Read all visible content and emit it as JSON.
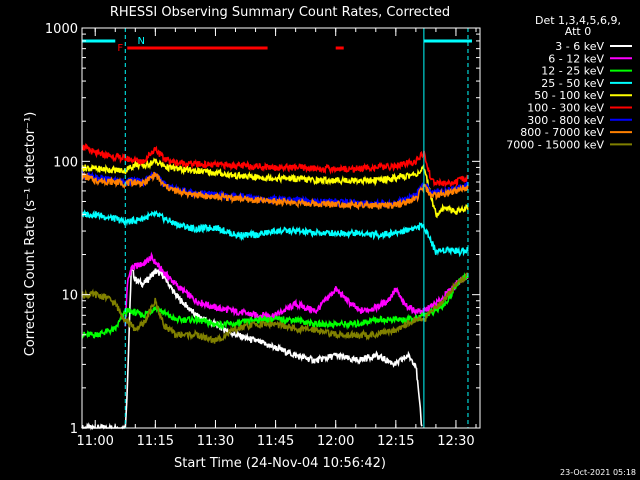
{
  "chart_data": {
    "type": "line",
    "title": "RHESSI Observing Summary Count Rates, Corrected",
    "xlabel": "Start Time (24-Nov-04 10:56:42)",
    "ylabel": "Corrected Count Rate (s⁻¹ detector⁻¹)",
    "y_scale": "log",
    "ylim": [
      1,
      1000
    ],
    "xlim": [
      "10:56:42",
      "12:36:00"
    ],
    "x_ticks": [
      "11:00",
      "11:15",
      "11:30",
      "11:45",
      "12:00",
      "12:15",
      "12:30"
    ],
    "y_ticks": [
      "1",
      "10",
      "100",
      "1000"
    ],
    "legend_header": [
      "Det 1,3,4,5,6,9,",
      "Att 0"
    ],
    "legend_position": "right",
    "timestamp": "23-Oct-2021 05:18",
    "flags": [
      {
        "label": "N",
        "color": "#00ffff",
        "segments": [
          [
            "10:56:42",
            "11:05:00"
          ],
          [
            "12:22:00",
            "12:34:00"
          ]
        ]
      },
      {
        "label": "F",
        "color": "#ff0000",
        "segments": [
          [
            "11:08:00",
            "11:43:00"
          ],
          [
            "12:00:00",
            "12:02:00"
          ]
        ]
      }
    ],
    "vertical_markers": [
      {
        "time": "11:07:30",
        "color": "#00ffff",
        "style": "dashed"
      },
      {
        "time": "12:22:00",
        "color": "#00ffff",
        "style": "solid"
      },
      {
        "time": "12:33:00",
        "color": "#00ffff",
        "style": "dashed"
      }
    ],
    "series": [
      {
        "name": "3 - 6 keV",
        "color": "#ffffff",
        "points": [
          [
            "10:56:42",
            1.0
          ],
          [
            "11:05:00",
            1.0
          ],
          [
            "11:07:30",
            1.0
          ],
          [
            "11:08:00",
            2.0
          ],
          [
            "11:09:00",
            16
          ],
          [
            "11:10:00",
            13
          ],
          [
            "11:12:00",
            12
          ],
          [
            "11:15:00",
            15
          ],
          [
            "11:17:00",
            14
          ],
          [
            "11:20:00",
            10
          ],
          [
            "11:25:00",
            7.0
          ],
          [
            "11:30:00",
            6.0
          ],
          [
            "11:35:00",
            5.0
          ],
          [
            "11:40:00",
            4.5
          ],
          [
            "11:45:00",
            4.0
          ],
          [
            "11:50:00",
            3.5
          ],
          [
            "11:55:00",
            3.2
          ],
          [
            "12:00:00",
            3.5
          ],
          [
            "12:05:00",
            3.2
          ],
          [
            "12:10:00",
            3.5
          ],
          [
            "12:15:00",
            3.0
          ],
          [
            "12:18:00",
            3.5
          ],
          [
            "12:20:00",
            3.0
          ],
          [
            "12:21:30",
            1.0
          ]
        ]
      },
      {
        "name": "6 - 12 keV",
        "color": "#ff00ff",
        "points": [
          [
            "11:07:30",
            6.0
          ],
          [
            "11:08:00",
            12
          ],
          [
            "11:09:00",
            16
          ],
          [
            "11:12:00",
            17
          ],
          [
            "11:14:00",
            19
          ],
          [
            "11:16:00",
            16
          ],
          [
            "11:20:00",
            12
          ],
          [
            "11:25:00",
            9.0
          ],
          [
            "11:30:00",
            8.0
          ],
          [
            "11:35:00",
            7.5
          ],
          [
            "11:40:00",
            7.0
          ],
          [
            "11:45:00",
            7.0
          ],
          [
            "11:50:00",
            8.5
          ],
          [
            "11:55:00",
            7.5
          ],
          [
            "12:00:00",
            11
          ],
          [
            "12:03:00",
            9.0
          ],
          [
            "12:06:00",
            7.5
          ],
          [
            "12:10:00",
            8.0
          ],
          [
            "12:13:00",
            9.0
          ],
          [
            "12:15:00",
            11
          ],
          [
            "12:17:00",
            8.5
          ],
          [
            "12:20:00",
            7.5
          ],
          [
            "12:22:00",
            7.5
          ],
          [
            "12:26:00",
            9.0
          ],
          [
            "12:30:00",
            12
          ],
          [
            "12:33:00",
            14
          ]
        ]
      },
      {
        "name": "12 - 25 keV",
        "color": "#00ff00",
        "points": [
          [
            "10:56:42",
            5.0
          ],
          [
            "11:00:00",
            5.0
          ],
          [
            "11:05:00",
            5.5
          ],
          [
            "11:07:30",
            7.5
          ],
          [
            "11:09:00",
            7.5
          ],
          [
            "11:12:00",
            7.0
          ],
          [
            "11:15:00",
            8.0
          ],
          [
            "11:20:00",
            6.5
          ],
          [
            "11:25:00",
            6.5
          ],
          [
            "11:30:00",
            6.0
          ],
          [
            "11:35:00",
            6.0
          ],
          [
            "11:40:00",
            6.5
          ],
          [
            "11:45:00",
            6.5
          ],
          [
            "11:50:00",
            6.5
          ],
          [
            "11:55:00",
            6.0
          ],
          [
            "12:00:00",
            6.0
          ],
          [
            "12:05:00",
            6.0
          ],
          [
            "12:10:00",
            6.5
          ],
          [
            "12:15:00",
            6.5
          ],
          [
            "12:20:00",
            6.5
          ],
          [
            "12:22:00",
            7.0
          ],
          [
            "12:25:00",
            7.5
          ],
          [
            "12:28:00",
            9.0
          ],
          [
            "12:30:00",
            12
          ],
          [
            "12:33:00",
            14
          ]
        ]
      },
      {
        "name": "25 - 50 keV",
        "color": "#00ffff",
        "points": [
          [
            "10:56:42",
            40
          ],
          [
            "11:00:00",
            40
          ],
          [
            "11:05:00",
            37
          ],
          [
            "11:07:30",
            35
          ],
          [
            "11:10:00",
            36
          ],
          [
            "11:15:00",
            40
          ],
          [
            "11:20:00",
            34
          ],
          [
            "11:25:00",
            31
          ],
          [
            "11:30:00",
            32
          ],
          [
            "11:35:00",
            28
          ],
          [
            "11:40:00",
            28
          ],
          [
            "11:45:00",
            30
          ],
          [
            "11:50:00",
            30
          ],
          [
            "11:55:00",
            29
          ],
          [
            "12:00:00",
            29
          ],
          [
            "12:05:00",
            29
          ],
          [
            "12:10:00",
            28
          ],
          [
            "12:15:00",
            29
          ],
          [
            "12:20:00",
            32
          ],
          [
            "12:22:00",
            33
          ],
          [
            "12:25:00",
            21
          ],
          [
            "12:28:00",
            22
          ],
          [
            "12:31:00",
            21
          ],
          [
            "12:33:00",
            22
          ]
        ]
      },
      {
        "name": "50 - 100 keV",
        "color": "#ffff00",
        "points": [
          [
            "10:56:42",
            90
          ],
          [
            "11:00:00",
            88
          ],
          [
            "11:05:00",
            86
          ],
          [
            "11:07:30",
            85
          ],
          [
            "11:10:00",
            95
          ],
          [
            "11:12:00",
            92
          ],
          [
            "11:15:00",
            100
          ],
          [
            "11:18:00",
            90
          ],
          [
            "11:25:00",
            85
          ],
          [
            "11:30:00",
            82
          ],
          [
            "11:35:00",
            78
          ],
          [
            "11:40:00",
            76
          ],
          [
            "11:45:00",
            75
          ],
          [
            "11:50:00",
            74
          ],
          [
            "11:55:00",
            72
          ],
          [
            "12:00:00",
            72
          ],
          [
            "12:05:00",
            72
          ],
          [
            "12:10:00",
            72
          ],
          [
            "12:15:00",
            75
          ],
          [
            "12:20:00",
            80
          ],
          [
            "12:22:00",
            88
          ],
          [
            "12:25:00",
            40
          ],
          [
            "12:27:00",
            45
          ],
          [
            "12:30:00",
            42
          ],
          [
            "12:33:00",
            45
          ]
        ]
      },
      {
        "name": "100 - 300 keV",
        "color": "#ff0000",
        "points": [
          [
            "10:56:42",
            130
          ],
          [
            "11:00:00",
            115
          ],
          [
            "11:05:00",
            108
          ],
          [
            "11:07:30",
            105
          ],
          [
            "11:10:00",
            102
          ],
          [
            "11:12:00",
            100
          ],
          [
            "11:15:00",
            125
          ],
          [
            "11:17:00",
            105
          ],
          [
            "11:20:00",
            98
          ],
          [
            "11:25:00",
            95
          ],
          [
            "11:30:00",
            94
          ],
          [
            "11:35:00",
            93
          ],
          [
            "11:40:00",
            92
          ],
          [
            "11:45:00",
            90
          ],
          [
            "11:50:00",
            90
          ],
          [
            "11:55:00",
            88
          ],
          [
            "12:00:00",
            88
          ],
          [
            "12:05:00",
            88
          ],
          [
            "12:10:00",
            90
          ],
          [
            "12:15:00",
            92
          ],
          [
            "12:20:00",
            100
          ],
          [
            "12:22:00",
            115
          ],
          [
            "12:24:00",
            70
          ],
          [
            "12:27:00",
            68
          ],
          [
            "12:30:00",
            70
          ],
          [
            "12:33:00",
            75
          ]
        ]
      },
      {
        "name": "300 - 800 keV",
        "color": "#0000ff",
        "points": [
          [
            "10:56:42",
            80
          ],
          [
            "11:00:00",
            75
          ],
          [
            "11:05:00",
            72
          ],
          [
            "11:07:30",
            70
          ],
          [
            "11:10:00",
            72
          ],
          [
            "11:12:00",
            70
          ],
          [
            "11:15:00",
            82
          ],
          [
            "11:17:00",
            68
          ],
          [
            "11:20:00",
            62
          ],
          [
            "11:25:00",
            58
          ],
          [
            "11:30:00",
            56
          ],
          [
            "11:35:00",
            55
          ],
          [
            "11:40:00",
            53
          ],
          [
            "11:45:00",
            52
          ],
          [
            "11:50:00",
            51
          ],
          [
            "11:55:00",
            50
          ],
          [
            "12:00:00",
            50
          ],
          [
            "12:05:00",
            49
          ],
          [
            "12:10:00",
            48
          ],
          [
            "12:15:00",
            49
          ],
          [
            "12:20:00",
            55
          ],
          [
            "12:22:00",
            68
          ],
          [
            "12:24:00",
            58
          ],
          [
            "12:27:00",
            60
          ],
          [
            "12:30:00",
            62
          ],
          [
            "12:33:00",
            68
          ]
        ]
      },
      {
        "name": "800 - 7000 keV",
        "color": "#ff8000",
        "points": [
          [
            "10:56:42",
            78
          ],
          [
            "11:00:00",
            72
          ],
          [
            "11:05:00",
            70
          ],
          [
            "11:07:30",
            68
          ],
          [
            "11:10:00",
            70
          ],
          [
            "11:12:00",
            68
          ],
          [
            "11:15:00",
            80
          ],
          [
            "11:17:00",
            66
          ],
          [
            "11:20:00",
            60
          ],
          [
            "11:25:00",
            56
          ],
          [
            "11:30:00",
            54
          ],
          [
            "11:35:00",
            53
          ],
          [
            "11:40:00",
            51
          ],
          [
            "11:45:00",
            50
          ],
          [
            "11:50:00",
            49
          ],
          [
            "11:55:00",
            48
          ],
          [
            "12:00:00",
            48
          ],
          [
            "12:05:00",
            47
          ],
          [
            "12:10:00",
            46
          ],
          [
            "12:15:00",
            47
          ],
          [
            "12:20:00",
            52
          ],
          [
            "12:22:00",
            65
          ],
          [
            "12:24:00",
            55
          ],
          [
            "12:27:00",
            57
          ],
          [
            "12:30:00",
            60
          ],
          [
            "12:33:00",
            65
          ]
        ]
      },
      {
        "name": "7000 - 15000 keV",
        "color": "#808000",
        "points": [
          [
            "10:56:42",
            10
          ],
          [
            "11:00:00",
            10
          ],
          [
            "11:03:00",
            9.5
          ],
          [
            "11:05:00",
            8.5
          ],
          [
            "11:07:30",
            6.5
          ],
          [
            "11:10:00",
            5.5
          ],
          [
            "11:12:00",
            6.0
          ],
          [
            "11:15:00",
            9.0
          ],
          [
            "11:17:00",
            6.0
          ],
          [
            "11:20:00",
            5.0
          ],
          [
            "11:25:00",
            5.0
          ],
          [
            "11:30:00",
            4.5
          ],
          [
            "11:35:00",
            5.5
          ],
          [
            "11:40:00",
            6.0
          ],
          [
            "11:45:00",
            6.0
          ],
          [
            "11:50:00",
            5.5
          ],
          [
            "11:55:00",
            5.5
          ],
          [
            "12:00:00",
            5.0
          ],
          [
            "12:05:00",
            5.0
          ],
          [
            "12:10:00",
            5.0
          ],
          [
            "12:15:00",
            5.5
          ],
          [
            "12:20:00",
            6.5
          ],
          [
            "12:22:00",
            6.5
          ],
          [
            "12:25:00",
            8.0
          ],
          [
            "12:28:00",
            10
          ],
          [
            "12:30:00",
            12
          ],
          [
            "12:33:00",
            14
          ]
        ]
      }
    ]
  }
}
